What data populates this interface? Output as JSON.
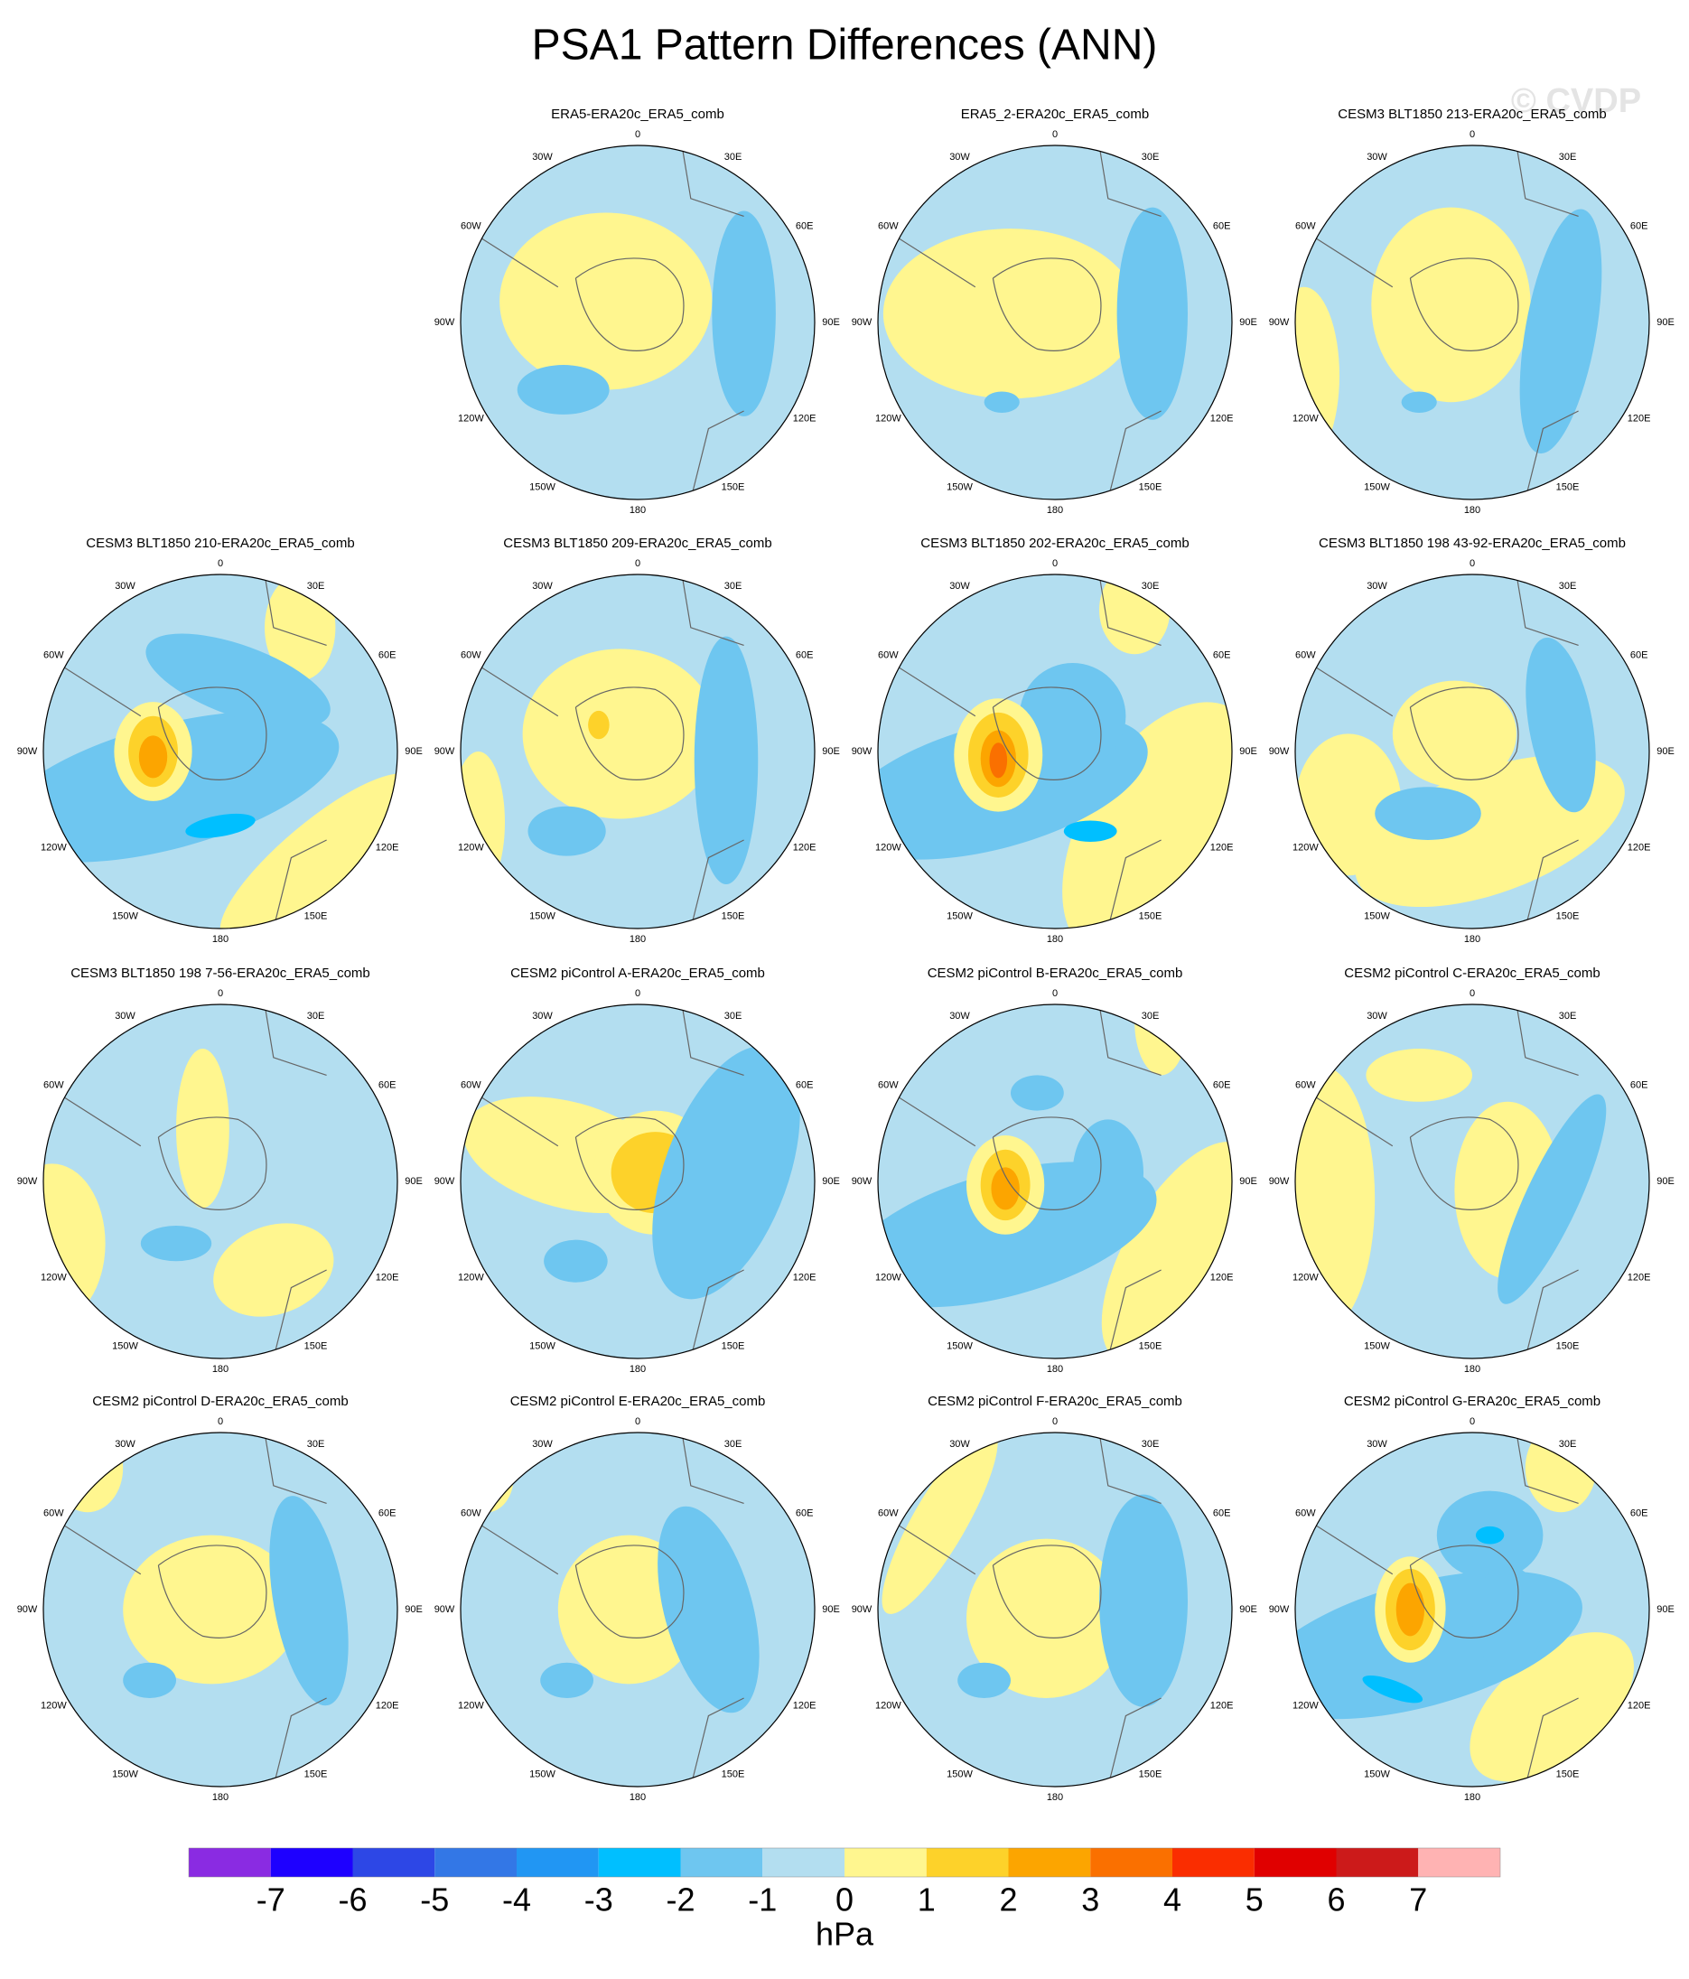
{
  "title": "PSA1 Pattern Differences (ANN)",
  "watermark": "© CVDP",
  "lon_labels": [
    "0",
    "30E",
    "60E",
    "90E",
    "120E",
    "150E",
    "180",
    "150W",
    "120W",
    "90W",
    "60W",
    "30W"
  ],
  "panels": [
    {
      "title": "ERA5-ERA20c_ERA5_comb"
    },
    {
      "title": "ERA5_2-ERA20c_ERA5_comb"
    },
    {
      "title": "CESM3 BLT1850 213-ERA20c_ERA5_comb"
    },
    {
      "title": "CESM3 BLT1850 210-ERA20c_ERA5_comb"
    },
    {
      "title": "CESM3 BLT1850 209-ERA20c_ERA5_comb"
    },
    {
      "title": "CESM3 BLT1850 202-ERA20c_ERA5_comb"
    },
    {
      "title": "CESM3 BLT1850 198 43-92-ERA20c_ERA5_comb"
    },
    {
      "title": "CESM3 BLT1850 198 7-56-ERA20c_ERA5_comb"
    },
    {
      "title": "CESM2 piControl A-ERA20c_ERA5_comb"
    },
    {
      "title": "CESM2 piControl B-ERA20c_ERA5_comb"
    },
    {
      "title": "CESM2 piControl C-ERA20c_ERA5_comb"
    },
    {
      "title": "CESM2 piControl D-ERA20c_ERA5_comb"
    },
    {
      "title": "CESM2 piControl E-ERA20c_ERA5_comb"
    },
    {
      "title": "CESM2 piControl F-ERA20c_ERA5_comb"
    },
    {
      "title": "CESM2 piControl G-ERA20c_ERA5_comb"
    }
  ],
  "colorbar": {
    "levels": [
      -7,
      -6,
      -5,
      -4,
      -3,
      -2,
      -1,
      0,
      1,
      2,
      3,
      4,
      5,
      6,
      7
    ],
    "colors": [
      "#8a2be2",
      "#1e00ff",
      "#2d47e6",
      "#3377e6",
      "#2196f3",
      "#00bfff",
      "#6ec6f0",
      "#b3def0",
      "#fff68f",
      "#fdd22a",
      "#fca500",
      "#fa7000",
      "#fa2d00",
      "#e00000",
      "#cc1a1a",
      "#ffb3b3"
    ],
    "unit": "hPa"
  }
}
